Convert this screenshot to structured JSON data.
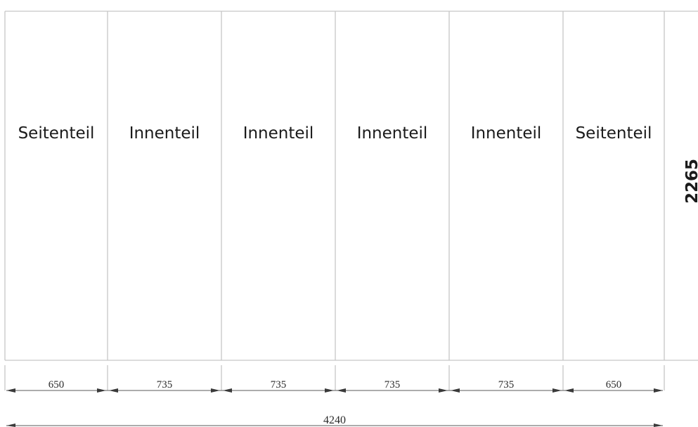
{
  "panels": [
    {
      "label": "Seitenteil",
      "width": "650"
    },
    {
      "label": "Innenteil",
      "width": "735"
    },
    {
      "label": "Innenteil",
      "width": "735"
    },
    {
      "label": "Innenteil",
      "width": "735"
    },
    {
      "label": "Innenteil",
      "width": "735"
    },
    {
      "label": "Seitenteil",
      "width": "650"
    }
  ],
  "total_width": "4240",
  "height": "2265"
}
